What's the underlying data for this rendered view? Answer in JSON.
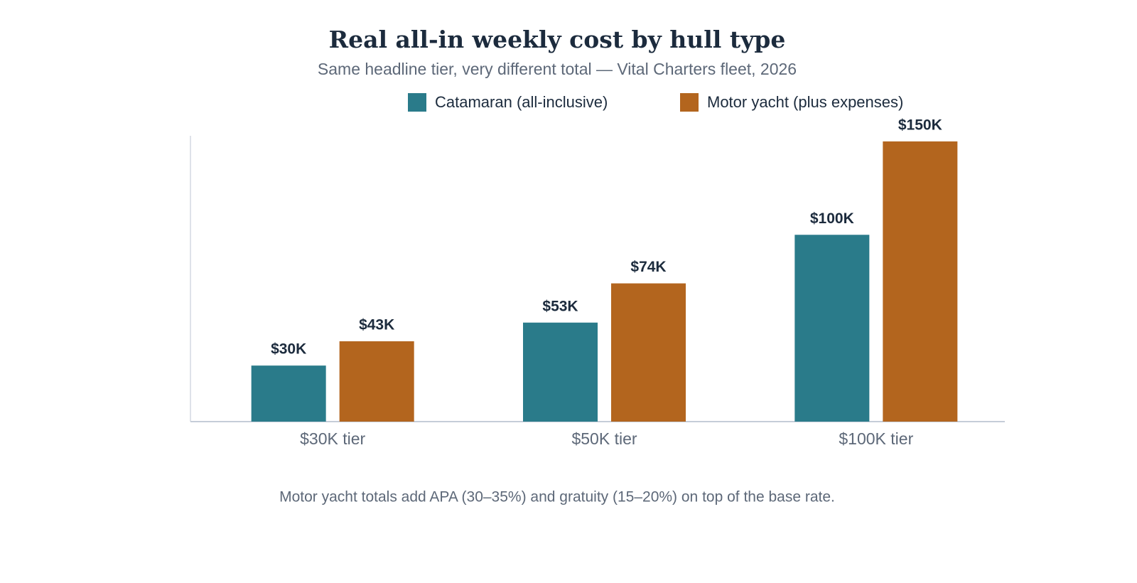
{
  "chart_data": {
    "type": "bar",
    "title": "Real all-in weekly cost by hull type",
    "subtitle": "Same headline tier, very different total — Vital Charters fleet, 2026",
    "categories": [
      "$30K tier",
      "$50K tier",
      "$100K tier"
    ],
    "series": [
      {
        "name": "Catamaran (all-inclusive)",
        "color": "#2a7b8a",
        "values": [
          30,
          53,
          100
        ],
        "value_labels": [
          "$30K",
          "$53K",
          "$100K"
        ]
      },
      {
        "name": "Motor yacht (plus expenses)",
        "color": "#b3651e",
        "values": [
          43,
          74,
          150
        ],
        "value_labels": [
          "$43K",
          "$74K",
          "$150K"
        ]
      }
    ],
    "ylim": [
      0,
      153
    ],
    "grid": false,
    "legend": "top",
    "annotation": "Motor yacht totals add APA (30–35%) and gratuity (15–20%) on top of the base rate."
  }
}
